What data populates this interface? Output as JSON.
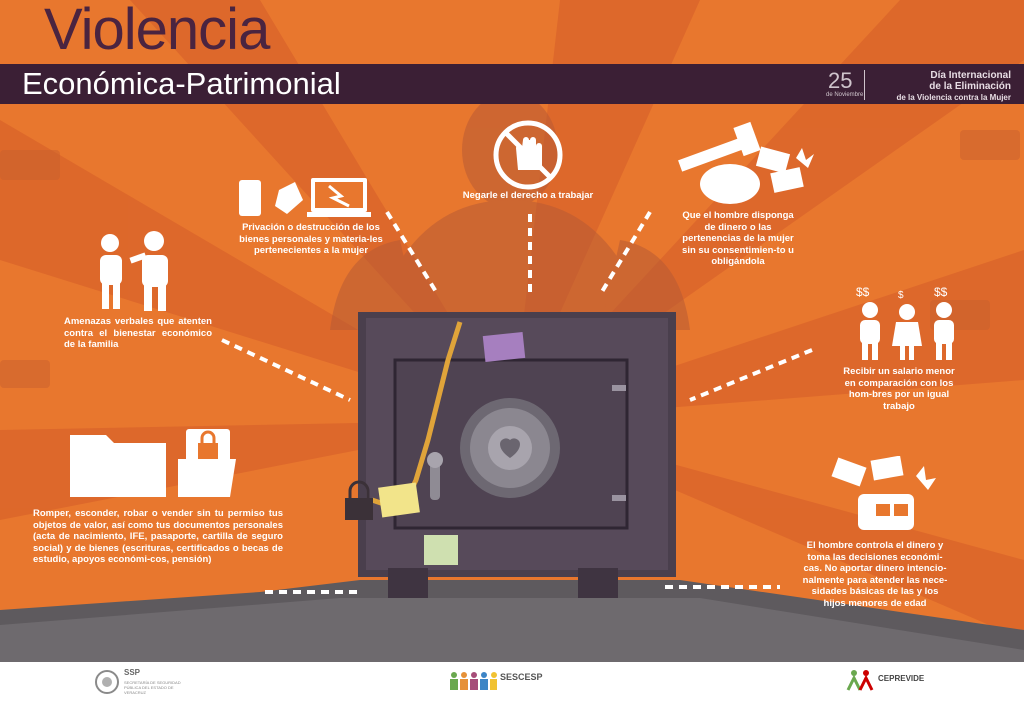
{
  "header": {
    "title_line1": "Violencia",
    "title_line2": "Económica-Patrimonial",
    "date_number": "25",
    "date_month": "de Noviembre",
    "event_line1": "Día Internacional",
    "event_line2": "de la Eliminación",
    "event_line3": "de la Violencia contra la Mujer"
  },
  "items": {
    "destruccion": "Privación o destrucción de los bienes personales y materia-les pertenecientes a la mujer",
    "trabajo": "Negarle el derecho a trabajar",
    "dinero": "Que el hombre disponga de dinero o las pertenencias de la mujer sin su consentimien-to u obligándola",
    "amenazas": "Amenazas verbales que atenten contra el bienestar económico de la familia",
    "salario": "Recibir un salario menor en comparación con los hom-bres por un igual trabajo",
    "romper": "Romper, esconder, robar o vender sin tu permiso tus objetos de valor, así como tus documentos personales (acta de nacimiento, IFE, pasaporte, cartilla de seguro social) y de bienes (escrituras, certificados o becas de estudio, apoyos económi-cos, pensión)",
    "controla": "El hombre controla el dinero y toma las decisiones económi-cas. No aportar dinero intencio-nalmente para atender las nece-sidades básicas de las y los hijos menores de edad"
  },
  "footer": {
    "logo1": "SSP",
    "logo1_sub": "SECRETARÍA DE SEGURIDAD PÚBLICA DEL ESTADO DE VERACRUZ",
    "logo2": "SESCESP",
    "logo3": "CEPREVIDE"
  },
  "colors": {
    "orange": "#e8772e",
    "dark_band": "#3b1f35",
    "safe": "#4f4352"
  }
}
